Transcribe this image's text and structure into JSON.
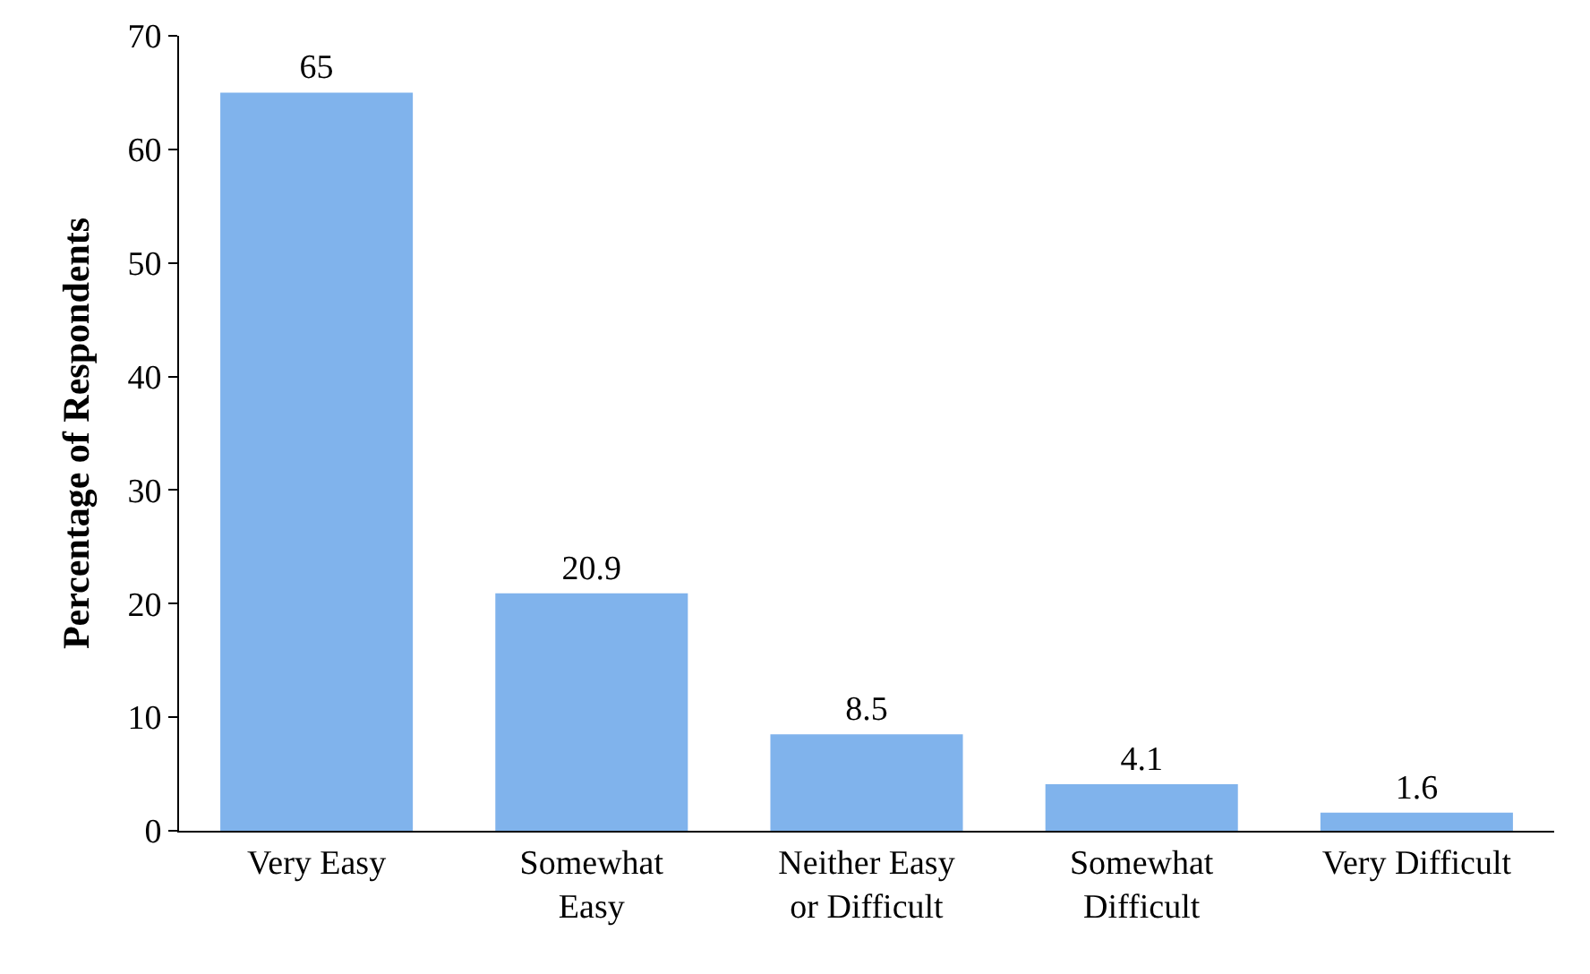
{
  "chart_data": {
    "type": "bar",
    "ylabel": "Percentage of Respondents",
    "categories": [
      "Very Easy",
      "Somewhat\nEasy",
      "Neither Easy\nor Difficult",
      "Somewhat\nDifficult",
      "Very Difficult"
    ],
    "values": [
      65,
      20.9,
      8.5,
      4.1,
      1.6
    ],
    "color": "#80b3ec",
    "ylim": [
      0,
      70
    ],
    "yticks": [
      0,
      10,
      20,
      30,
      40,
      50,
      60,
      70
    ],
    "data_labels": true,
    "legend": false
  }
}
